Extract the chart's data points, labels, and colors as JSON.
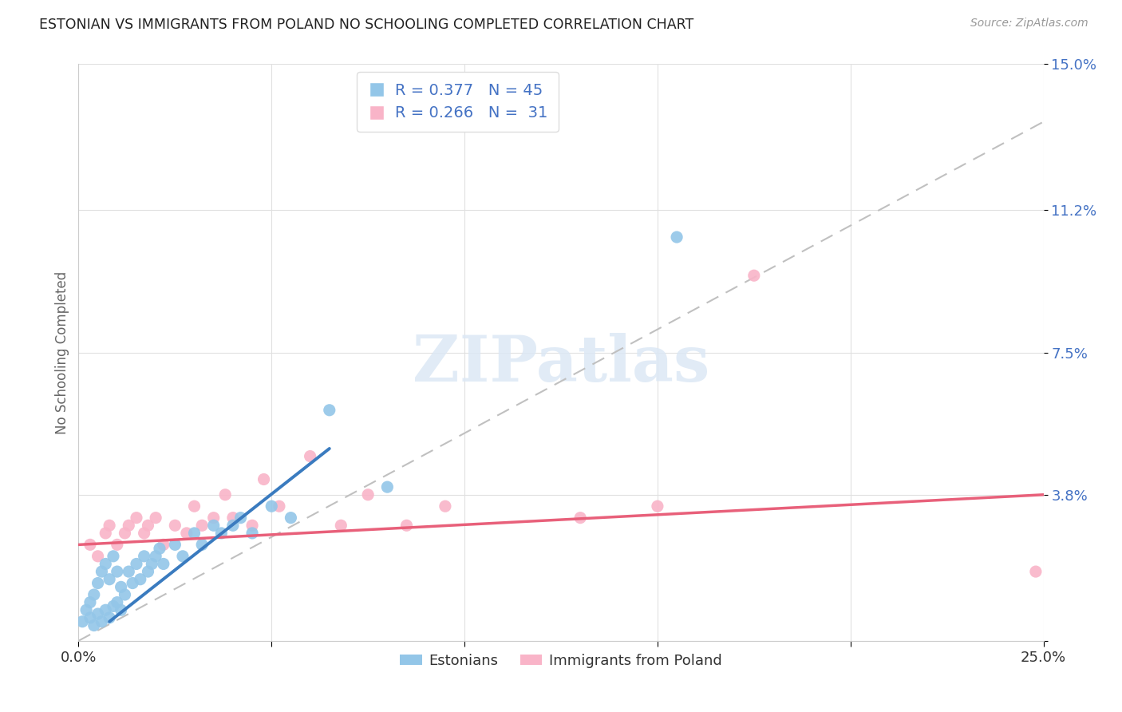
{
  "title": "ESTONIAN VS IMMIGRANTS FROM POLAND NO SCHOOLING COMPLETED CORRELATION CHART",
  "source": "Source: ZipAtlas.com",
  "ylabel": "No Schooling Completed",
  "xlim": [
    0.0,
    0.25
  ],
  "ylim": [
    0.0,
    0.15
  ],
  "ytick_values": [
    0.0,
    0.038,
    0.075,
    0.112,
    0.15
  ],
  "ytick_labels": [
    "",
    "3.8%",
    "7.5%",
    "11.2%",
    "15.0%"
  ],
  "blue_R": 0.377,
  "blue_N": 45,
  "pink_R": 0.266,
  "pink_N": 31,
  "blue_color": "#93c6e8",
  "pink_color": "#f9b4c8",
  "blue_line_color": "#3a7bbf",
  "pink_line_color": "#e8607a",
  "background_color": "#ffffff",
  "watermark": "ZIPatlas",
  "legend_labels": [
    "Estonians",
    "Immigrants from Poland"
  ],
  "blue_scatter_x": [
    0.001,
    0.002,
    0.003,
    0.003,
    0.004,
    0.004,
    0.005,
    0.005,
    0.006,
    0.006,
    0.007,
    0.007,
    0.008,
    0.008,
    0.009,
    0.009,
    0.01,
    0.01,
    0.011,
    0.011,
    0.012,
    0.013,
    0.014,
    0.015,
    0.016,
    0.017,
    0.018,
    0.019,
    0.02,
    0.021,
    0.022,
    0.025,
    0.027,
    0.03,
    0.032,
    0.035,
    0.037,
    0.04,
    0.042,
    0.045,
    0.05,
    0.055,
    0.065,
    0.08,
    0.155
  ],
  "blue_scatter_y": [
    0.005,
    0.008,
    0.006,
    0.01,
    0.004,
    0.012,
    0.007,
    0.015,
    0.005,
    0.018,
    0.008,
    0.02,
    0.006,
    0.016,
    0.009,
    0.022,
    0.01,
    0.018,
    0.008,
    0.014,
    0.012,
    0.018,
    0.015,
    0.02,
    0.016,
    0.022,
    0.018,
    0.02,
    0.022,
    0.024,
    0.02,
    0.025,
    0.022,
    0.028,
    0.025,
    0.03,
    0.028,
    0.03,
    0.032,
    0.028,
    0.035,
    0.032,
    0.06,
    0.04,
    0.105
  ],
  "pink_scatter_x": [
    0.003,
    0.005,
    0.007,
    0.008,
    0.01,
    0.012,
    0.013,
    0.015,
    0.017,
    0.018,
    0.02,
    0.022,
    0.025,
    0.028,
    0.03,
    0.032,
    0.035,
    0.038,
    0.04,
    0.045,
    0.048,
    0.052,
    0.06,
    0.068,
    0.075,
    0.085,
    0.095,
    0.13,
    0.15,
    0.175,
    0.248
  ],
  "pink_scatter_y": [
    0.025,
    0.022,
    0.028,
    0.03,
    0.025,
    0.028,
    0.03,
    0.032,
    0.028,
    0.03,
    0.032,
    0.025,
    0.03,
    0.028,
    0.035,
    0.03,
    0.032,
    0.038,
    0.032,
    0.03,
    0.042,
    0.035,
    0.048,
    0.03,
    0.038,
    0.03,
    0.035,
    0.032,
    0.035,
    0.095,
    0.018
  ],
  "blue_line_x": [
    0.008,
    0.065
  ],
  "blue_line_y": [
    0.005,
    0.05
  ],
  "pink_line_x": [
    0.0,
    0.25
  ],
  "pink_line_y": [
    0.025,
    0.038
  ],
  "dash_line_x": [
    0.0,
    0.25
  ],
  "dash_line_y": [
    0.0,
    0.135
  ]
}
